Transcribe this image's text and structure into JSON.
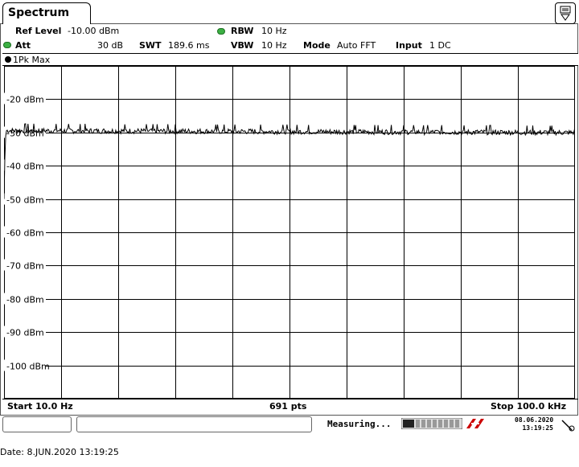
{
  "window": {
    "tab_title": "Spectrum"
  },
  "header": {
    "ref_level_label": "Ref Level",
    "ref_level_value": "-10.00 dBm",
    "att_label": "Att",
    "att_value": "30 dB",
    "swt_label": "SWT",
    "swt_value": "189.6 ms",
    "rbw_label": "RBW",
    "rbw_value": "10 Hz",
    "vbw_label": "VBW",
    "vbw_value": "10 Hz",
    "mode_label": "Mode",
    "mode_value": "Auto FFT",
    "input_label": "Input",
    "input_value": "1 DC"
  },
  "trace": {
    "label": "1Pk Max"
  },
  "footer_bar": {
    "start_label": "Start 10.0 Hz",
    "points_label": "691 pts",
    "stop_label": "Stop 100.0 kHz"
  },
  "status": {
    "state_text": "Measuring...",
    "date": "08.06.2020",
    "time": "13:19:25"
  },
  "page_footer": {
    "text": "Date: 8.JUN.2020  13:19:25"
  },
  "colors": {
    "trace": "#000000",
    "grid": "#000000",
    "led_green": "#3cb043",
    "logo_red": "#cc0000"
  },
  "chart_data": {
    "type": "line",
    "x_start_hz": 10,
    "x_stop_hz": 100000,
    "points": 691,
    "ylim": [
      -110,
      -10
    ],
    "yticks": [
      -20,
      -30,
      -40,
      -50,
      -60,
      -70,
      -80,
      -90,
      -100
    ],
    "ytick_labels": [
      "-20 dBm",
      "-30 dBm",
      "-40 dBm",
      "-50 dBm",
      "-60 dBm",
      "-70 dBm",
      "-80 dBm",
      "-90 dBm",
      "-100 dBm"
    ],
    "grid": true,
    "noise_floor_dbm": -29.5,
    "initial_rolloff_dbm": [
      -50,
      -38,
      -31
    ]
  }
}
